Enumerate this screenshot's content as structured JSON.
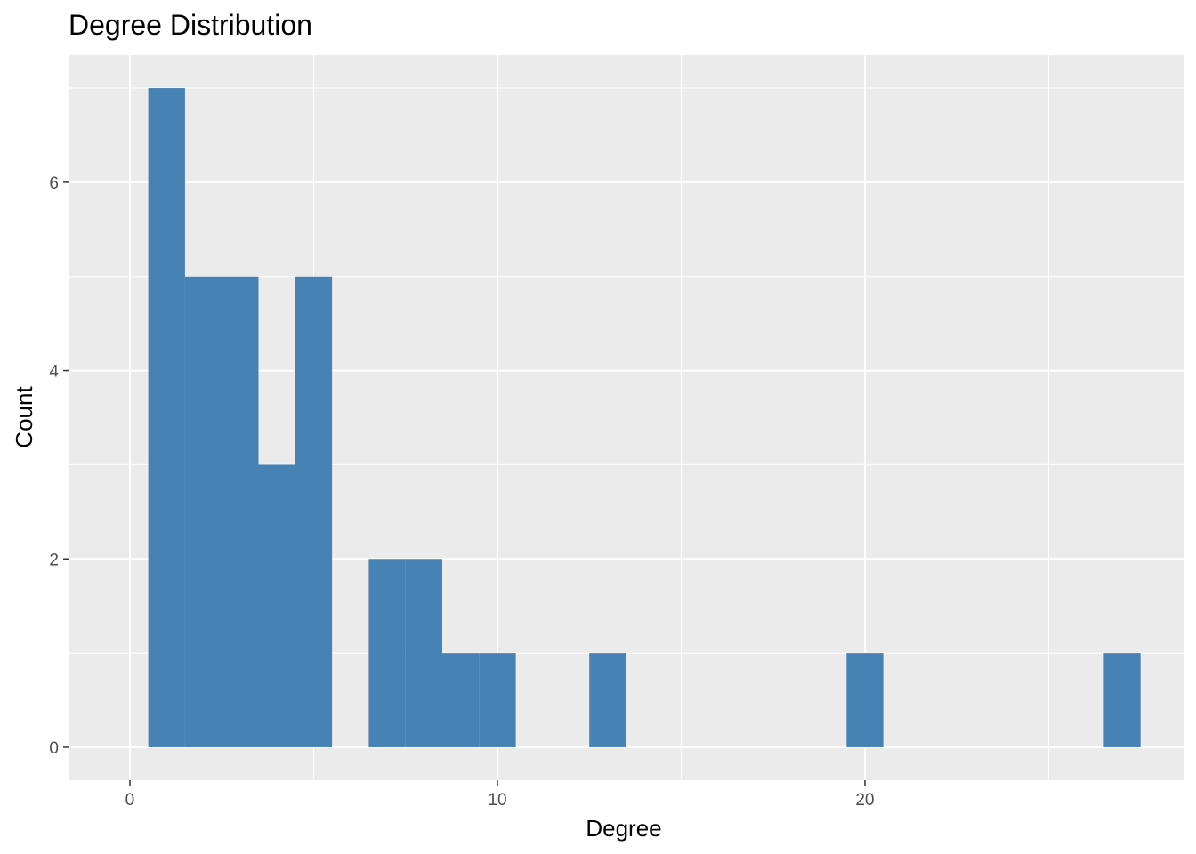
{
  "chart_data": {
    "type": "bar",
    "title": "Degree Distribution",
    "xlabel": "Degree",
    "ylabel": "Count",
    "xlim": [
      -1.67,
      28.67
    ],
    "ylim": [
      -0.35,
      7.35
    ],
    "x_ticks": [
      0,
      10,
      20
    ],
    "x_tick_labels": [
      "0",
      "10",
      "20"
    ],
    "x_minor_ticks": [
      5,
      15,
      25
    ],
    "y_ticks": [
      0,
      2,
      4,
      6
    ],
    "y_tick_labels": [
      "0",
      "2",
      "4",
      "6"
    ],
    "y_minor_ticks": [
      1,
      3,
      5,
      7
    ],
    "grid": true,
    "bin_width": 1,
    "bins": [
      {
        "x": 1,
        "count": 7
      },
      {
        "x": 2,
        "count": 5
      },
      {
        "x": 3,
        "count": 5
      },
      {
        "x": 4,
        "count": 3
      },
      {
        "x": 5,
        "count": 5
      },
      {
        "x": 6,
        "count": 0
      },
      {
        "x": 7,
        "count": 2
      },
      {
        "x": 8,
        "count": 2
      },
      {
        "x": 9,
        "count": 1
      },
      {
        "x": 10,
        "count": 1
      },
      {
        "x": 11,
        "count": 0
      },
      {
        "x": 12,
        "count": 0
      },
      {
        "x": 13,
        "count": 1
      },
      {
        "x": 14,
        "count": 0
      },
      {
        "x": 15,
        "count": 0
      },
      {
        "x": 16,
        "count": 0
      },
      {
        "x": 17,
        "count": 0
      },
      {
        "x": 18,
        "count": 0
      },
      {
        "x": 19,
        "count": 0
      },
      {
        "x": 20,
        "count": 1
      },
      {
        "x": 21,
        "count": 0
      },
      {
        "x": 22,
        "count": 0
      },
      {
        "x": 23,
        "count": 0
      },
      {
        "x": 24,
        "count": 0
      },
      {
        "x": 25,
        "count": 0
      },
      {
        "x": 26,
        "count": 0
      },
      {
        "x": 27,
        "count": 1
      }
    ],
    "colors": {
      "bar": "#4682b4",
      "panel": "#ebebeb",
      "grid": "#ffffff",
      "tick": "#333333"
    }
  }
}
